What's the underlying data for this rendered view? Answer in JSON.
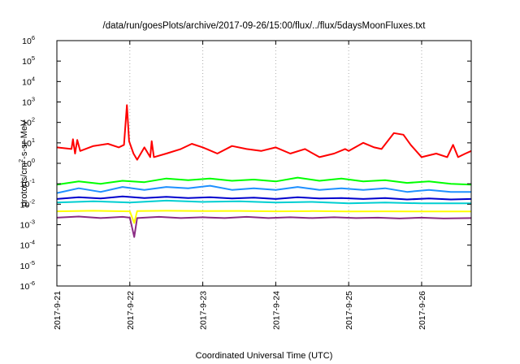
{
  "chart_data": {
    "type": "line",
    "title": "/data/run/goesPlots/archive/2017-09-26/15:00/flux/../flux/5daysMoonFluxes.txt",
    "xlabel": "Coordinated Universal Time (UTC)",
    "ylabel": {
      "base": "protons/cm",
      "sup": "2",
      "rest": "-s-sr-MeV"
    },
    "yscale": "log",
    "ylim": [
      1e-06,
      1000000.0
    ],
    "xlim_days": [
      0,
      5.68
    ],
    "x_ticks": [
      {
        "day": 0,
        "label": "2017-9-21"
      },
      {
        "day": 1,
        "label": "2017-9-22"
      },
      {
        "day": 2,
        "label": "2017-9-23"
      },
      {
        "day": 3,
        "label": "2017-9-24"
      },
      {
        "day": 4,
        "label": "2017-9-25"
      },
      {
        "day": 5,
        "label": "2017-9-26"
      }
    ],
    "y_ticks": [
      {
        "exp": 6,
        "base": "10",
        "sup": "6"
      },
      {
        "exp": 5,
        "base": "10",
        "sup": "5"
      },
      {
        "exp": 4,
        "base": "10",
        "sup": "4"
      },
      {
        "exp": 3,
        "base": "10",
        "sup": "3"
      },
      {
        "exp": 2,
        "base": "10",
        "sup": "2"
      },
      {
        "exp": 1,
        "base": "10",
        "sup": "1"
      },
      {
        "exp": 0,
        "base": "10",
        "sup": "0"
      },
      {
        "exp": -1,
        "base": "10",
        "sup": "-1"
      },
      {
        "exp": -2,
        "base": "10",
        "sup": "-2"
      },
      {
        "exp": -3,
        "base": "10",
        "sup": "-3"
      },
      {
        "exp": -4,
        "base": "10",
        "sup": "-4"
      },
      {
        "exp": -5,
        "base": "10",
        "sup": "-5"
      },
      {
        "exp": -6,
        "base": "10",
        "sup": "-6"
      }
    ],
    "grid": "vertical-dotted",
    "series": [
      {
        "color": "#ff0000",
        "points": [
          [
            0,
            6
          ],
          [
            0.2,
            5
          ],
          [
            0.22,
            15
          ],
          [
            0.25,
            3
          ],
          [
            0.28,
            14
          ],
          [
            0.32,
            4
          ],
          [
            0.5,
            7
          ],
          [
            0.7,
            9
          ],
          [
            0.85,
            6
          ],
          [
            0.92,
            8
          ],
          [
            0.96,
            700
          ],
          [
            0.99,
            12
          ],
          [
            1.05,
            3
          ],
          [
            1.1,
            1.5
          ],
          [
            1.2,
            6
          ],
          [
            1.28,
            2
          ],
          [
            1.3,
            12
          ],
          [
            1.33,
            2
          ],
          [
            1.5,
            3
          ],
          [
            1.7,
            5
          ],
          [
            1.85,
            9
          ],
          [
            2.0,
            6
          ],
          [
            2.2,
            3
          ],
          [
            2.4,
            7
          ],
          [
            2.6,
            5
          ],
          [
            2.8,
            4
          ],
          [
            3.0,
            6
          ],
          [
            3.2,
            3
          ],
          [
            3.4,
            5
          ],
          [
            3.6,
            2
          ],
          [
            3.8,
            3
          ],
          [
            3.95,
            5
          ],
          [
            4.0,
            4
          ],
          [
            4.2,
            10
          ],
          [
            4.35,
            6
          ],
          [
            4.45,
            5
          ],
          [
            4.62,
            30
          ],
          [
            4.75,
            25
          ],
          [
            4.85,
            8
          ],
          [
            5.0,
            2
          ],
          [
            5.2,
            3
          ],
          [
            5.35,
            2
          ],
          [
            5.43,
            8
          ],
          [
            5.5,
            2
          ],
          [
            5.6,
            3
          ],
          [
            5.68,
            4
          ]
        ]
      },
      {
        "color": "#00ff00",
        "points": [
          [
            0,
            0.09
          ],
          [
            0.3,
            0.13
          ],
          [
            0.6,
            0.1
          ],
          [
            0.9,
            0.14
          ],
          [
            1.2,
            0.12
          ],
          [
            1.5,
            0.18
          ],
          [
            1.8,
            0.15
          ],
          [
            2.1,
            0.18
          ],
          [
            2.4,
            0.14
          ],
          [
            2.7,
            0.16
          ],
          [
            3.0,
            0.13
          ],
          [
            3.3,
            0.2
          ],
          [
            3.6,
            0.14
          ],
          [
            3.9,
            0.18
          ],
          [
            4.2,
            0.13
          ],
          [
            4.5,
            0.15
          ],
          [
            4.8,
            0.11
          ],
          [
            5.1,
            0.13
          ],
          [
            5.4,
            0.1
          ],
          [
            5.68,
            0.09
          ]
        ]
      },
      {
        "color": "#1e90ff",
        "points": [
          [
            0,
            0.035
          ],
          [
            0.3,
            0.06
          ],
          [
            0.6,
            0.04
          ],
          [
            0.9,
            0.07
          ],
          [
            1.2,
            0.05
          ],
          [
            1.5,
            0.07
          ],
          [
            1.8,
            0.06
          ],
          [
            2.1,
            0.08
          ],
          [
            2.4,
            0.05
          ],
          [
            2.7,
            0.06
          ],
          [
            3.0,
            0.05
          ],
          [
            3.3,
            0.07
          ],
          [
            3.6,
            0.05
          ],
          [
            3.9,
            0.06
          ],
          [
            4.2,
            0.05
          ],
          [
            4.5,
            0.06
          ],
          [
            4.8,
            0.04
          ],
          [
            5.1,
            0.05
          ],
          [
            5.4,
            0.04
          ],
          [
            5.68,
            0.04
          ]
        ]
      },
      {
        "color": "#00ced1",
        "points": [
          [
            0,
            0.012
          ],
          [
            0.5,
            0.014
          ],
          [
            1.0,
            0.012
          ],
          [
            1.5,
            0.015
          ],
          [
            2.0,
            0.013
          ],
          [
            2.5,
            0.014
          ],
          [
            3.0,
            0.012
          ],
          [
            3.5,
            0.013
          ],
          [
            4.0,
            0.011
          ],
          [
            4.5,
            0.012
          ],
          [
            5.0,
            0.011
          ],
          [
            5.68,
            0.011
          ]
        ]
      },
      {
        "color": "#0000cd",
        "points": [
          [
            0,
            0.018
          ],
          [
            0.3,
            0.022
          ],
          [
            0.6,
            0.019
          ],
          [
            0.9,
            0.024
          ],
          [
            1.2,
            0.02
          ],
          [
            1.5,
            0.023
          ],
          [
            1.8,
            0.02
          ],
          [
            2.1,
            0.022
          ],
          [
            2.4,
            0.019
          ],
          [
            2.7,
            0.021
          ],
          [
            3.0,
            0.018
          ],
          [
            3.3,
            0.022
          ],
          [
            3.6,
            0.019
          ],
          [
            3.9,
            0.02
          ],
          [
            4.2,
            0.018
          ],
          [
            4.5,
            0.02
          ],
          [
            4.8,
            0.017
          ],
          [
            5.1,
            0.019
          ],
          [
            5.4,
            0.017
          ],
          [
            5.68,
            0.018
          ]
        ]
      },
      {
        "color": "#ffff00",
        "points": [
          [
            0,
            0.0045
          ],
          [
            0.5,
            0.0048
          ],
          [
            1.0,
            0.0045
          ],
          [
            1.06,
            0.0012
          ],
          [
            1.1,
            0.0046
          ],
          [
            1.5,
            0.0048
          ],
          [
            2.0,
            0.0046
          ],
          [
            2.5,
            0.0047
          ],
          [
            3.0,
            0.0045
          ],
          [
            3.5,
            0.0046
          ],
          [
            4.0,
            0.0044
          ],
          [
            4.5,
            0.0045
          ],
          [
            5.0,
            0.0044
          ],
          [
            5.68,
            0.0044
          ]
        ]
      },
      {
        "color": "#8b2c84",
        "points": [
          [
            0,
            0.0022
          ],
          [
            0.3,
            0.0025
          ],
          [
            0.6,
            0.0021
          ],
          [
            0.9,
            0.0024
          ],
          [
            1.0,
            0.0022
          ],
          [
            1.06,
            0.00025
          ],
          [
            1.1,
            0.0021
          ],
          [
            1.4,
            0.0024
          ],
          [
            1.7,
            0.0021
          ],
          [
            2.0,
            0.0023
          ],
          [
            2.3,
            0.0021
          ],
          [
            2.6,
            0.0024
          ],
          [
            2.9,
            0.0021
          ],
          [
            3.2,
            0.0023
          ],
          [
            3.5,
            0.0021
          ],
          [
            3.8,
            0.0023
          ],
          [
            4.1,
            0.0021
          ],
          [
            4.4,
            0.0022
          ],
          [
            4.7,
            0.002
          ],
          [
            5.0,
            0.0022
          ],
          [
            5.3,
            0.002
          ],
          [
            5.68,
            0.0021
          ]
        ]
      }
    ]
  }
}
